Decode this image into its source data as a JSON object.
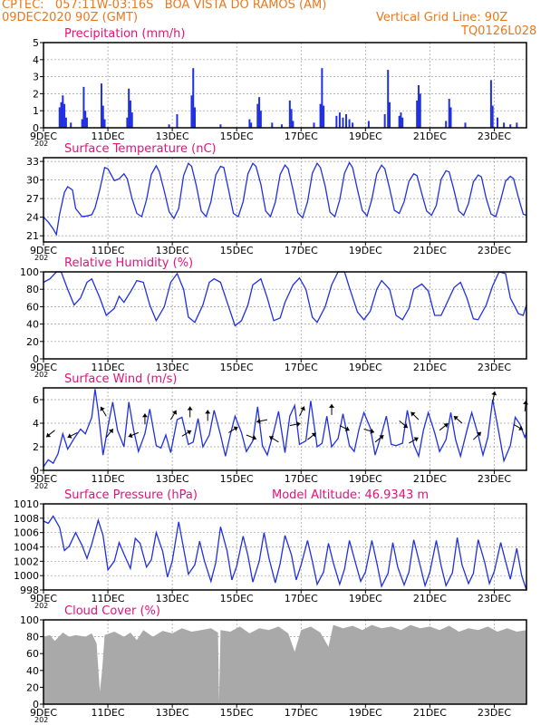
{
  "header": {
    "line1": "CPTEC:   057:11W-03:16S   BOA VISTA DO RAMOS (AM)",
    "line2": "09DEC2020 90Z (GMT)",
    "grid_note": "Vertical Grid Line: 90Z",
    "model_code": "TQ0126L028",
    "model_altitude": "Model Altitude: 46.9343 m"
  },
  "colors": {
    "header": "#e8781e",
    "title": "#e0127a",
    "line": "#2030e0",
    "bar": "#2030e0",
    "cloud": "#a9a9a9",
    "arrow": "#000000",
    "grid": "#999999"
  },
  "x_axis": {
    "start_day": 9,
    "end_day": 24,
    "ticks": [
      {
        "day": 9,
        "label": "9DEC"
      },
      {
        "day": 11,
        "label": "11DEC"
      },
      {
        "day": 13,
        "label": "13DEC"
      },
      {
        "day": 15,
        "label": "15DEC"
      },
      {
        "day": 17,
        "label": "17DEC"
      },
      {
        "day": 19,
        "label": "19DEC"
      },
      {
        "day": 21,
        "label": "21DEC"
      },
      {
        "day": 23,
        "label": "23DEC"
      }
    ],
    "year_stub": "202"
  },
  "chart_data": [
    {
      "type": "bar",
      "title": "Precipitation (mm/h)",
      "ylim": [
        0,
        5
      ],
      "yticks": [
        0,
        1,
        2,
        3,
        4,
        5
      ],
      "x": [
        9.5,
        9.55,
        9.6,
        9.65,
        9.7,
        9.85,
        10.2,
        10.25,
        10.3,
        10.35,
        10.8,
        10.85,
        10.9,
        11.6,
        11.65,
        11.7,
        11.75,
        12.9,
        13.15,
        13.6,
        13.65,
        13.7,
        14.5,
        15.4,
        15.45,
        15.65,
        15.7,
        15.75,
        16.1,
        16.4,
        16.65,
        16.7,
        16.75,
        17.4,
        17.6,
        17.65,
        17.7,
        18.1,
        18.2,
        18.3,
        18.4,
        18.5,
        18.6,
        19.1,
        19.6,
        19.7,
        19.75,
        20.05,
        20.1,
        20.15,
        20.6,
        20.65,
        20.7,
        21.5,
        21.6,
        21.65,
        22.1,
        22.9,
        22.95,
        23.1,
        23.3,
        23.5,
        23.7
      ],
      "y": [
        1.2,
        1.5,
        1.9,
        1.4,
        0.6,
        0.3,
        0.5,
        2.4,
        1.0,
        0.6,
        2.6,
        1.3,
        0.5,
        0.6,
        2.3,
        1.6,
        0.9,
        0.2,
        0.8,
        1.9,
        3.5,
        1.2,
        0.2,
        0.5,
        0.3,
        1.4,
        1.8,
        1.0,
        0.3,
        0.2,
        1.6,
        1.1,
        0.4,
        0.3,
        1.4,
        3.5,
        1.3,
        0.7,
        0.9,
        0.6,
        0.8,
        0.5,
        0.3,
        0.4,
        0.8,
        3.4,
        1.5,
        0.7,
        0.9,
        0.6,
        1.6,
        2.5,
        2.0,
        0.4,
        1.7,
        1.2,
        0.3,
        2.8,
        1.3,
        0.6,
        0.3,
        0.2,
        0.3
      ]
    },
    {
      "type": "line",
      "title": "Surface Temperature (nC)",
      "ylim": [
        20,
        33.6
      ],
      "yticks": [
        21,
        24,
        27,
        30,
        33
      ],
      "x": [
        9.0,
        9.15,
        9.3,
        9.4,
        9.5,
        9.65,
        9.75,
        9.9,
        10.0,
        10.2,
        10.35,
        10.5,
        10.6,
        10.75,
        10.9,
        11.0,
        11.2,
        11.35,
        11.5,
        11.6,
        11.75,
        11.9,
        12.05,
        12.2,
        12.35,
        12.5,
        12.6,
        12.75,
        12.9,
        13.05,
        13.2,
        13.35,
        13.5,
        13.6,
        13.75,
        13.9,
        14.05,
        14.2,
        14.35,
        14.5,
        14.6,
        14.75,
        14.9,
        15.05,
        15.2,
        15.35,
        15.5,
        15.6,
        15.75,
        15.9,
        16.05,
        16.2,
        16.35,
        16.5,
        16.6,
        16.75,
        16.9,
        17.05,
        17.2,
        17.35,
        17.5,
        17.6,
        17.75,
        17.9,
        18.05,
        18.2,
        18.35,
        18.5,
        18.6,
        18.75,
        18.9,
        19.05,
        19.2,
        19.35,
        19.5,
        19.6,
        19.75,
        19.9,
        20.05,
        20.2,
        20.35,
        20.5,
        20.6,
        20.75,
        20.9,
        21.05,
        21.2,
        21.35,
        21.5,
        21.6,
        21.75,
        21.9,
        22.05,
        22.2,
        22.35,
        22.5,
        22.6,
        22.75,
        22.9,
        23.05,
        23.2,
        23.35,
        23.5,
        23.6,
        23.75,
        23.9,
        24.0
      ],
      "y": [
        24.0,
        23.2,
        22.1,
        21.2,
        24.5,
        28.0,
        28.9,
        28.4,
        25.4,
        24.1,
        24.2,
        24.4,
        25.5,
        28.5,
        32.0,
        31.8,
        29.9,
        30.2,
        31.0,
        30.2,
        27.0,
        24.6,
        24.1,
        26.8,
        30.9,
        32.3,
        31.3,
        28.2,
        24.9,
        23.8,
        25.4,
        30.7,
        32.7,
        32.2,
        29.0,
        25.0,
        24.1,
        26.5,
        30.8,
        32.2,
        32.0,
        28.4,
        24.6,
        24.1,
        26.5,
        31.0,
        32.7,
        32.2,
        29.3,
        25.0,
        24.1,
        26.4,
        30.9,
        32.4,
        31.8,
        28.4,
        24.7,
        23.9,
        26.5,
        31.1,
        32.7,
        32.0,
        29.0,
        24.8,
        24.1,
        26.8,
        31.1,
        32.8,
        32.0,
        28.5,
        25.1,
        24.2,
        26.9,
        31.0,
        32.4,
        31.8,
        28.6,
        25.1,
        24.6,
        26.5,
        29.8,
        31.0,
        30.7,
        27.8,
        25.0,
        24.3,
        25.9,
        30.1,
        31.5,
        31.3,
        28.3,
        25.0,
        24.3,
        26.2,
        29.7,
        30.8,
        30.5,
        27.0,
        24.5,
        24.1,
        26.8,
        29.8,
        30.6,
        30.2,
        27.2,
        24.5,
        24.3
      ]
    },
    {
      "type": "line",
      "title": "Relative Humidity (%)",
      "ylim": [
        0,
        100
      ],
      "yticks": [
        0,
        20,
        40,
        60,
        80,
        100
      ],
      "x": [
        9.0,
        9.2,
        9.4,
        9.55,
        9.75,
        9.95,
        10.15,
        10.35,
        10.5,
        10.75,
        10.95,
        11.2,
        11.35,
        11.5,
        11.75,
        11.9,
        12.1,
        12.3,
        12.5,
        12.75,
        12.95,
        13.15,
        13.35,
        13.5,
        13.7,
        13.95,
        14.15,
        14.3,
        14.5,
        14.75,
        14.95,
        15.15,
        15.35,
        15.5,
        15.75,
        15.95,
        16.15,
        16.35,
        16.5,
        16.75,
        16.95,
        17.15,
        17.35,
        17.5,
        17.75,
        17.95,
        18.15,
        18.35,
        18.5,
        18.75,
        18.95,
        19.15,
        19.35,
        19.5,
        19.75,
        19.95,
        20.15,
        20.35,
        20.5,
        20.75,
        20.95,
        21.15,
        21.35,
        21.5,
        21.75,
        21.95,
        22.15,
        22.35,
        22.5,
        22.75,
        22.95,
        23.15,
        23.35,
        23.5,
        23.75,
        23.9,
        24.0
      ],
      "y": [
        88,
        92,
        100,
        100,
        80,
        62,
        70,
        88,
        92,
        70,
        50,
        58,
        72,
        65,
        80,
        90,
        88,
        62,
        44,
        60,
        88,
        98,
        80,
        48,
        42,
        62,
        88,
        92,
        88,
        60,
        38,
        44,
        62,
        85,
        92,
        70,
        44,
        47,
        65,
        85,
        93,
        80,
        48,
        42,
        60,
        85,
        100,
        100,
        82,
        54,
        45,
        55,
        80,
        90,
        80,
        50,
        45,
        58,
        80,
        86,
        78,
        50,
        50,
        62,
        82,
        88,
        70,
        46,
        45,
        62,
        84,
        100,
        98,
        70,
        52,
        50,
        62
      ]
    },
    {
      "type": "line",
      "title": "Surface Wind (m/s)",
      "ylim": [
        0,
        7
      ],
      "yticks": [
        0,
        2,
        4,
        6
      ],
      "x": [
        9.0,
        9.15,
        9.3,
        9.45,
        9.6,
        9.75,
        9.95,
        10.15,
        10.3,
        10.5,
        10.6,
        10.7,
        10.85,
        11.0,
        11.15,
        11.3,
        11.5,
        11.65,
        11.8,
        11.95,
        12.15,
        12.3,
        12.5,
        12.65,
        12.8,
        12.95,
        13.15,
        13.3,
        13.5,
        13.65,
        13.8,
        13.95,
        14.15,
        14.3,
        14.5,
        14.65,
        14.8,
        14.95,
        15.15,
        15.3,
        15.5,
        15.65,
        15.8,
        15.95,
        16.15,
        16.3,
        16.5,
        16.65,
        16.8,
        16.95,
        17.15,
        17.3,
        17.5,
        17.65,
        17.8,
        17.95,
        18.15,
        18.3,
        18.5,
        18.65,
        18.8,
        18.95,
        19.15,
        19.3,
        19.5,
        19.65,
        19.8,
        19.95,
        20.15,
        20.3,
        20.5,
        20.65,
        20.8,
        20.95,
        21.15,
        21.3,
        21.5,
        21.65,
        21.8,
        21.95,
        22.15,
        22.3,
        22.5,
        22.65,
        22.8,
        22.95,
        23.15,
        23.3,
        23.5,
        23.65,
        23.8,
        23.95,
        24.0
      ],
      "y": [
        0.3,
        0.9,
        0.6,
        1.4,
        3.1,
        1.8,
        2.7,
        3.5,
        3.1,
        4.5,
        6.9,
        5.0,
        1.3,
        3.7,
        5.8,
        3.4,
        2.0,
        5.8,
        3.4,
        1.6,
        3.1,
        5.2,
        2.1,
        1.9,
        3.0,
        1.5,
        4.3,
        4.5,
        2.2,
        2.4,
        4.4,
        2.0,
        3.0,
        5.1,
        3.0,
        1.2,
        3.0,
        4.6,
        3.2,
        1.6,
        2.5,
        5.4,
        2.1,
        1.3,
        3.3,
        5.0,
        1.5,
        4.6,
        5.5,
        2.2,
        2.5,
        5.9,
        2.0,
        2.3,
        4.6,
        2.0,
        2.7,
        4.8,
        2.1,
        1.6,
        3.5,
        4.9,
        3.6,
        1.3,
        3.1,
        4.6,
        2.2,
        2.1,
        2.3,
        5.1,
        2.2,
        1.2,
        3.4,
        4.9,
        3.2,
        1.6,
        2.6,
        4.9,
        2.6,
        1.2,
        3.4,
        4.9,
        3.0,
        1.3,
        2.8,
        6.0,
        3.1,
        0.8,
        2.1,
        4.5,
        3.9,
        2.8,
        3.2
      ],
      "arrows": [
        {
          "day": 9.35,
          "speed": 3.4,
          "dx": -1,
          "dy": 0.8
        },
        {
          "day": 10.05,
          "speed": 3.2,
          "dx": -1,
          "dy": 0.5
        },
        {
          "day": 10.95,
          "speed": 2.8,
          "dx": 0.8,
          "dy": -1
        },
        {
          "day": 10.95,
          "speed": 4.6,
          "dx": -0.6,
          "dy": -1
        },
        {
          "day": 11.95,
          "speed": 3.2,
          "dx": -1,
          "dy": 0.4
        },
        {
          "day": 12.15,
          "speed": 3.9,
          "dx": 0,
          "dy": -1
        },
        {
          "day": 12.95,
          "speed": 4.3,
          "dx": 0.6,
          "dy": -1
        },
        {
          "day": 13.3,
          "speed": 2.9,
          "dx": 1,
          "dy": -0.6
        },
        {
          "day": 13.55,
          "speed": 4.5,
          "dx": 0,
          "dy": -1
        },
        {
          "day": 14.1,
          "speed": 4.2,
          "dx": 0,
          "dy": -1
        },
        {
          "day": 14.75,
          "speed": 3.2,
          "dx": 0.8,
          "dy": -0.5
        },
        {
          "day": 15.3,
          "speed": 3.0,
          "dx": 1,
          "dy": 0.4
        },
        {
          "day": 15.95,
          "speed": 4.3,
          "dx": -1,
          "dy": 0.2
        },
        {
          "day": 16.3,
          "speed": 2.4,
          "dx": -0.8,
          "dy": -0.5
        },
        {
          "day": 16.65,
          "speed": 3.8,
          "dx": 1,
          "dy": -0.2
        },
        {
          "day": 16.95,
          "speed": 4.6,
          "dx": 0.5,
          "dy": -1
        },
        {
          "day": 17.2,
          "speed": 2.6,
          "dx": 1,
          "dy": -0.8
        },
        {
          "day": 17.95,
          "speed": 4.7,
          "dx": 0,
          "dy": -1
        },
        {
          "day": 18.2,
          "speed": 3.8,
          "dx": 0.8,
          "dy": 0.4
        },
        {
          "day": 18.95,
          "speed": 3.5,
          "dx": 1,
          "dy": 0.3
        },
        {
          "day": 19.3,
          "speed": 2.4,
          "dx": 1,
          "dy": -0.8
        },
        {
          "day": 20.05,
          "speed": 4.2,
          "dx": 0.6,
          "dy": 0.5
        },
        {
          "day": 20.35,
          "speed": 2.3,
          "dx": 1,
          "dy": -0.6
        },
        {
          "day": 20.65,
          "speed": 4.3,
          "dx": -0.8,
          "dy": -0.8
        },
        {
          "day": 21.3,
          "speed": 3.4,
          "dx": 1,
          "dy": -0.8
        },
        {
          "day": 22.0,
          "speed": 4.0,
          "dx": -0.8,
          "dy": -0.7
        },
        {
          "day": 22.35,
          "speed": 2.6,
          "dx": 0.8,
          "dy": -0.8
        },
        {
          "day": 22.95,
          "speed": 5.8,
          "dx": 0.2,
          "dy": -1
        },
        {
          "day": 23.6,
          "speed": 3.9,
          "dx": 0.7,
          "dy": 0.4
        },
        {
          "day": 23.95,
          "speed": 5.0,
          "dx": 0.1,
          "dy": -1
        }
      ]
    },
    {
      "type": "line",
      "title": "Surface Pressure (hPa)",
      "ylim": [
        998,
        1010
      ],
      "yticks": [
        998,
        1000,
        1002,
        1004,
        1006,
        1008,
        1010
      ],
      "x": [
        9.0,
        9.15,
        9.3,
        9.5,
        9.65,
        9.8,
        10.0,
        10.2,
        10.35,
        10.5,
        10.7,
        10.85,
        11.0,
        11.2,
        11.35,
        11.5,
        11.7,
        11.85,
        12.0,
        12.2,
        12.35,
        12.5,
        12.7,
        12.85,
        13.0,
        13.2,
        13.35,
        13.5,
        13.7,
        13.85,
        14.0,
        14.2,
        14.35,
        14.5,
        14.7,
        14.85,
        15.0,
        15.2,
        15.35,
        15.5,
        15.7,
        15.85,
        16.0,
        16.2,
        16.35,
        16.5,
        16.7,
        16.85,
        17.0,
        17.2,
        17.35,
        17.5,
        17.7,
        17.85,
        18.0,
        18.2,
        18.35,
        18.5,
        18.7,
        18.85,
        19.0,
        19.2,
        19.35,
        19.5,
        19.7,
        19.85,
        20.0,
        20.2,
        20.35,
        20.5,
        20.7,
        20.85,
        21.0,
        21.2,
        21.35,
        21.5,
        21.7,
        21.85,
        22.0,
        22.2,
        22.35,
        22.5,
        22.7,
        22.85,
        23.0,
        23.2,
        23.35,
        23.5,
        23.7,
        23.85,
        24.0
      ],
      "y": [
        1007.6,
        1007.3,
        1008.3,
        1006.7,
        1003.5,
        1004.1,
        1006.0,
        1004.2,
        1002.4,
        1004.4,
        1007.7,
        1005.6,
        1000.8,
        1002.0,
        1004.6,
        1003.0,
        1001.0,
        1005.2,
        1004.5,
        1001.2,
        1002.2,
        1006.0,
        1003.4,
        999.8,
        1002.0,
        1007.5,
        1003.8,
        1000.2,
        1001.5,
        1004.8,
        1002.0,
        999.2,
        1001.8,
        1006.8,
        1003.5,
        999.4,
        1001.3,
        1005.5,
        1002.8,
        999.1,
        1002.0,
        1006.0,
        1002.5,
        999.0,
        1001.7,
        1005.6,
        1002.9,
        999.4,
        1001.5,
        1004.9,
        1002.0,
        998.8,
        1000.5,
        1004.5,
        1001.8,
        998.8,
        1000.9,
        1004.9,
        1001.6,
        999.2,
        1000.5,
        1004.9,
        1001.8,
        998.5,
        1000.3,
        1004.6,
        1001.2,
        998.7,
        1000.5,
        1005.0,
        1001.4,
        998.6,
        1000.5,
        1004.9,
        1001.4,
        998.6,
        1000.4,
        1005.3,
        1001.5,
        998.9,
        1000.3,
        1005.0,
        1001.9,
        998.9,
        1000.6,
        1004.6,
        1002.0,
        999.5,
        1003.8,
        1000.0,
        998.0
      ]
    },
    {
      "type": "area",
      "title": "Cloud Cover (%)",
      "ylim": [
        0,
        100
      ],
      "yticks": [
        0,
        20,
        40,
        60,
        80,
        100
      ],
      "x": [
        9.0,
        9.2,
        9.35,
        9.6,
        9.8,
        10.0,
        10.3,
        10.5,
        10.65,
        10.75,
        10.82,
        10.9,
        11.2,
        11.5,
        11.7,
        11.9,
        12.1,
        12.4,
        12.7,
        13.0,
        13.3,
        13.6,
        13.9,
        14.2,
        14.42,
        14.45,
        14.5,
        14.8,
        15.1,
        15.4,
        15.7,
        16.0,
        16.3,
        16.6,
        16.8,
        17.0,
        17.3,
        17.6,
        17.85,
        18.0,
        18.3,
        18.6,
        18.9,
        19.2,
        19.5,
        19.8,
        20.1,
        20.4,
        20.7,
        21.0,
        21.3,
        21.6,
        21.9,
        22.2,
        22.5,
        22.8,
        23.1,
        23.4,
        23.7,
        24.0
      ],
      "y": [
        80,
        82,
        75,
        85,
        80,
        82,
        80,
        84,
        72,
        15,
        40,
        82,
        86,
        80,
        85,
        76,
        88,
        80,
        87,
        84,
        90,
        86,
        88,
        90,
        85,
        3,
        88,
        86,
        92,
        84,
        90,
        88,
        92,
        84,
        62,
        88,
        92,
        85,
        68,
        94,
        90,
        93,
        88,
        94,
        90,
        92,
        88,
        94,
        90,
        92,
        88,
        93,
        86,
        90,
        88,
        92,
        86,
        90,
        86,
        88
      ]
    }
  ]
}
